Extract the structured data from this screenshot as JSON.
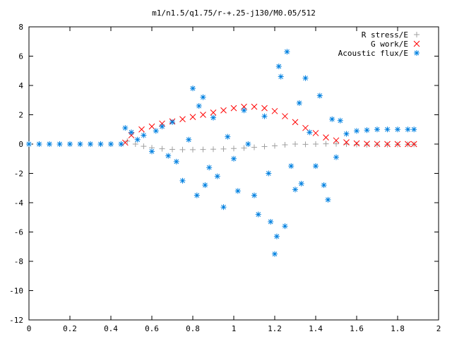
{
  "chart_data": {
    "type": "scatter",
    "title": "m1/n1.5/q1.75/r-+.25-j130/M0.05/512",
    "xlabel": "",
    "ylabel": "",
    "xlim": [
      0,
      2
    ],
    "ylim": [
      -12,
      8
    ],
    "xticks": [
      "0",
      "0.2",
      "0.4",
      "0.6",
      "0.8",
      "1",
      "1.2",
      "1.4",
      "1.6",
      "1.8",
      "2"
    ],
    "yticks": [
      "8",
      "6",
      "4",
      "2",
      "0",
      "-2",
      "-4",
      "-6",
      "-8",
      "-10",
      "-12"
    ],
    "grid": false,
    "legend_position": "top-right",
    "series": [
      {
        "name": "R stress/E",
        "marker": "+",
        "color": "#a0a0a0",
        "x": [
          0.48,
          0.52,
          0.56,
          0.6,
          0.65,
          0.7,
          0.75,
          0.8,
          0.85,
          0.9,
          0.95,
          1.0,
          1.05,
          1.1,
          1.15,
          1.2,
          1.25,
          1.3,
          1.35,
          1.4,
          1.45,
          1.5,
          1.55,
          1.6,
          1.65,
          1.7,
          1.75,
          1.8,
          1.85,
          1.88
        ],
        "y": [
          0.2,
          0.0,
          -0.15,
          -0.25,
          -0.32,
          -0.36,
          -0.38,
          -0.38,
          -0.37,
          -0.35,
          -0.33,
          -0.3,
          -0.27,
          -0.22,
          -0.17,
          -0.12,
          -0.05,
          0.0,
          -0.02,
          0.0,
          0.02,
          0.02,
          0.0,
          -0.03,
          -0.05,
          -0.05,
          -0.04,
          -0.03,
          -0.02,
          -0.02
        ]
      },
      {
        "name": "G work/E",
        "marker": "x",
        "color": "#ff0000",
        "x": [
          0.47,
          0.5,
          0.55,
          0.6,
          0.65,
          0.7,
          0.75,
          0.8,
          0.85,
          0.9,
          0.95,
          1.0,
          1.05,
          1.1,
          1.15,
          1.2,
          1.25,
          1.3,
          1.35,
          1.4,
          1.45,
          1.5,
          1.55,
          1.6,
          1.65,
          1.7,
          1.75,
          1.8,
          1.85,
          1.88
        ],
        "y": [
          0.1,
          0.6,
          1.0,
          1.2,
          1.4,
          1.55,
          1.7,
          1.85,
          2.0,
          2.15,
          2.3,
          2.45,
          2.55,
          2.55,
          2.45,
          2.25,
          1.9,
          1.5,
          1.1,
          0.75,
          0.45,
          0.25,
          0.12,
          0.05,
          0.02,
          0.01,
          0.0,
          0.0,
          0.0,
          0.0
        ]
      },
      {
        "name": "Acoustic flux/E",
        "marker": "*",
        "color": "#0080e0",
        "x": [
          0.0,
          0.05,
          0.1,
          0.15,
          0.2,
          0.25,
          0.3,
          0.35,
          0.4,
          0.45,
          0.47,
          0.5,
          0.53,
          0.56,
          0.6,
          0.62,
          0.65,
          0.68,
          0.7,
          0.72,
          0.75,
          0.78,
          0.8,
          0.82,
          0.83,
          0.85,
          0.86,
          0.88,
          0.9,
          0.92,
          0.95,
          0.97,
          1.0,
          1.02,
          1.05,
          1.07,
          1.1,
          1.12,
          1.15,
          1.17,
          1.18,
          1.2,
          1.21,
          1.22,
          1.23,
          1.25,
          1.26,
          1.28,
          1.3,
          1.32,
          1.33,
          1.35,
          1.37,
          1.4,
          1.42,
          1.44,
          1.46,
          1.48,
          1.5,
          1.52,
          1.55,
          1.6,
          1.65,
          1.7,
          1.75,
          1.8,
          1.85,
          1.88
        ],
        "y": [
          0.0,
          0.0,
          0.0,
          0.0,
          0.0,
          0.0,
          0.0,
          0.0,
          0.0,
          0.0,
          1.1,
          0.8,
          0.3,
          0.6,
          -0.5,
          0.9,
          1.2,
          -0.8,
          1.5,
          -1.2,
          -2.5,
          0.3,
          3.8,
          -3.5,
          2.6,
          3.2,
          -2.8,
          -1.6,
          1.8,
          -2.2,
          -4.3,
          0.5,
          -1.0,
          -3.2,
          2.3,
          0.0,
          -3.5,
          -4.8,
          1.9,
          -2.0,
          -5.3,
          -7.5,
          -6.3,
          5.3,
          4.6,
          -5.6,
          6.3,
          -1.5,
          -3.1,
          2.8,
          -2.7,
          4.5,
          0.8,
          -1.5,
          3.3,
          -2.8,
          -3.8,
          1.7,
          -0.9,
          1.6,
          0.7,
          0.9,
          0.95,
          1.0,
          1.0,
          1.0,
          1.0,
          1.0
        ]
      }
    ]
  }
}
